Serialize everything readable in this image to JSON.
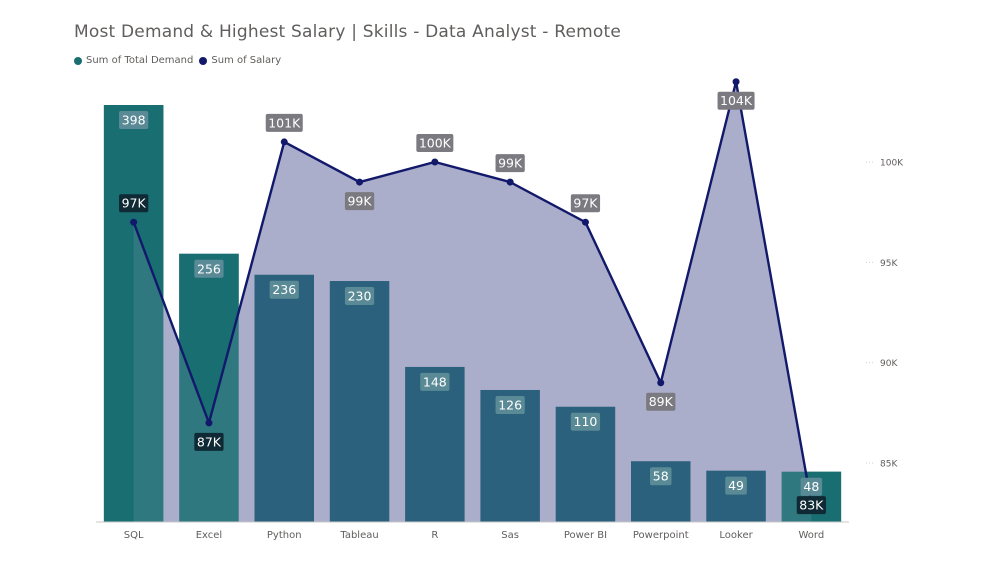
{
  "title": "Most Demand & Highest Salary | Skills - Data Analyst - Remote",
  "legend": [
    {
      "label": "Sum of Total Demand",
      "color": "#1a6e72"
    },
    {
      "label": "Sum of Salary",
      "color": "#12196b"
    }
  ],
  "colors": {
    "bar_highlight": "#1a6e72",
    "bar_default": "#15546e",
    "line": "#12196b",
    "area": "#aaaeca",
    "bar_label_bg": "#5a8a96",
    "line_label_dark": "#0f2a34",
    "line_label_grey": "#7a7a80"
  },
  "chart_data": {
    "type": "bar",
    "title": "Most Demand & Highest Salary | Skills - Data Analyst - Remote",
    "categories": [
      "SQL",
      "Excel",
      "Python",
      "Tableau",
      "R",
      "Sas",
      "Power BI",
      "Powerpoint",
      "Looker",
      "Word"
    ],
    "series": [
      {
        "name": "Sum of Total Demand",
        "type": "bar",
        "values": [
          398,
          256,
          236,
          230,
          148,
          126,
          110,
          58,
          49,
          48
        ],
        "labels": [
          "398",
          "256",
          "236",
          "230",
          "148",
          "126",
          "110",
          "58",
          "49",
          "48"
        ]
      },
      {
        "name": "Sum of Salary",
        "type": "area-line",
        "values": [
          97000,
          87000,
          101000,
          99000,
          100000,
          99000,
          97000,
          89000,
          104000,
          83000
        ],
        "labels": [
          "97K",
          "87K",
          "101K",
          "99K",
          "100K",
          "99K",
          "97K",
          "89K",
          "104K",
          "83K"
        ]
      }
    ],
    "y_right": {
      "ticks": [
        "85K",
        "90K",
        "95K",
        "100K"
      ],
      "tick_values": [
        85000,
        90000,
        95000,
        100000
      ]
    },
    "y_left_range": [
      0,
      398
    ],
    "y_right_range": [
      82000,
      104000
    ],
    "legend_position": "top-left",
    "grid": false
  }
}
